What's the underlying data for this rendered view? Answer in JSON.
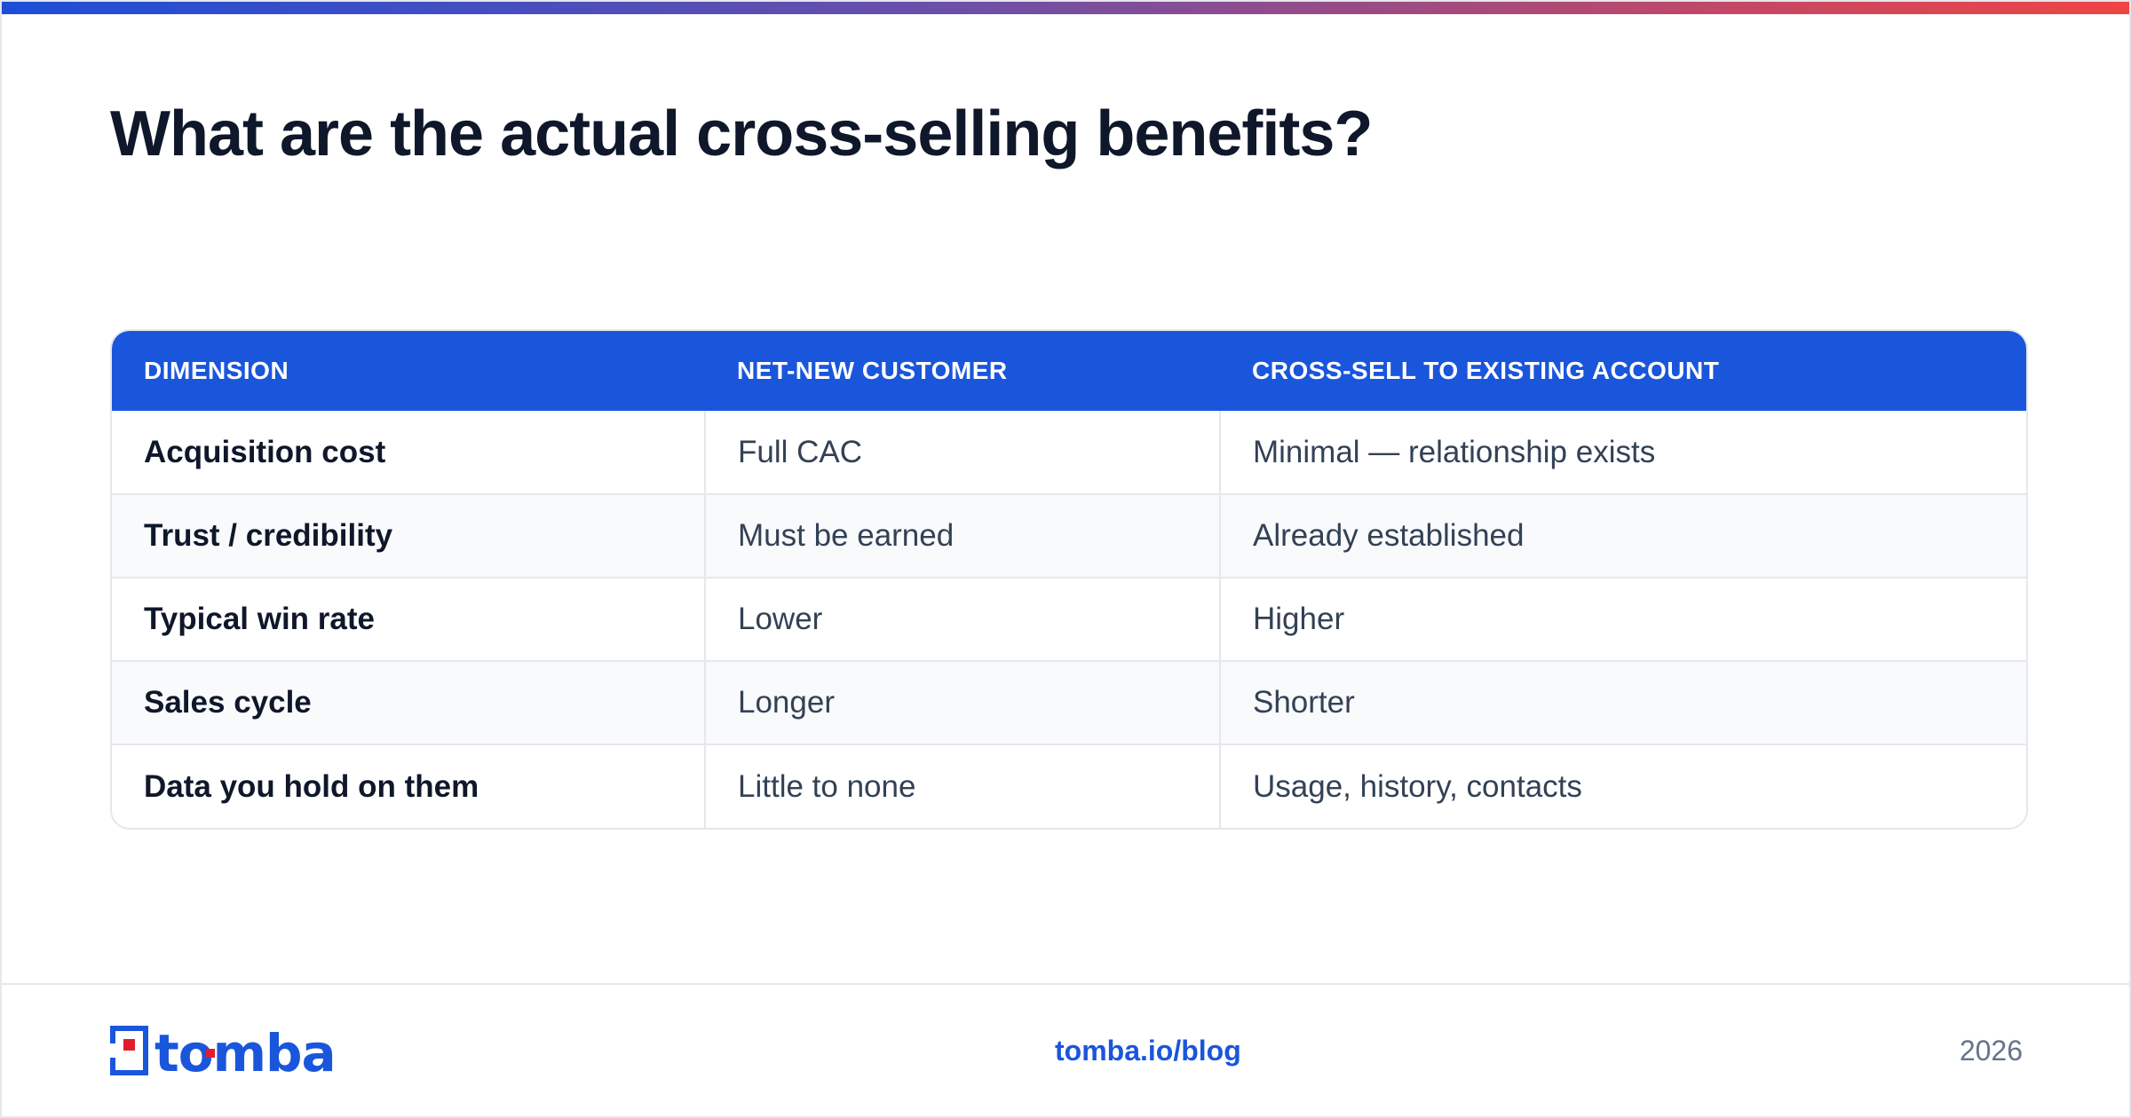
{
  "title": "What are the actual cross-selling benefits?",
  "table": {
    "headers": [
      "DIMENSION",
      "NET-NEW CUSTOMER",
      "CROSS-SELL TO EXISTING ACCOUNT"
    ],
    "rows": [
      [
        "Acquisition cost",
        "Full CAC",
        "Minimal — relationship exists"
      ],
      [
        "Trust / credibility",
        "Must be earned",
        "Already established"
      ],
      [
        "Typical win rate",
        "Lower",
        "Higher"
      ],
      [
        "Sales cycle",
        "Longer",
        "Shorter"
      ],
      [
        "Data you hold on them",
        "Little to none",
        "Usage, history, contacts"
      ]
    ]
  },
  "footer": {
    "logo_text": "tomba",
    "link": "tomba.io/blog",
    "year": "2026"
  },
  "colors": {
    "accent": "#1a56db",
    "logo_red": "#e11d2b",
    "gradient_start": "#1d4ed8",
    "gradient_end": "#ef4444"
  }
}
